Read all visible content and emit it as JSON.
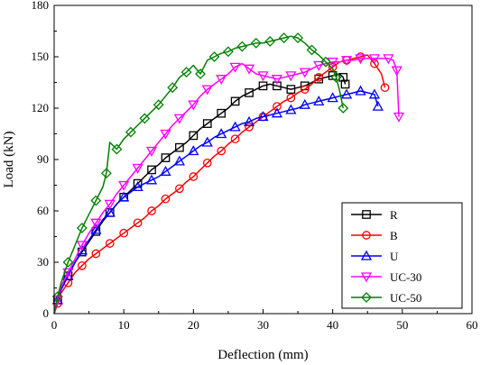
{
  "chart_data": {
    "type": "line",
    "title": "",
    "xlabel": "Deflection (mm)",
    "ylabel": "Load (kN)",
    "xlim": [
      0,
      60
    ],
    "ylim": [
      0,
      180
    ],
    "xticks": [
      0,
      10,
      20,
      30,
      40,
      50,
      60
    ],
    "yticks": [
      0,
      30,
      60,
      90,
      120,
      150,
      180
    ],
    "grid": false,
    "legend_position": "lower-right",
    "series": [
      {
        "name": "R",
        "color": "#000000",
        "marker": "square",
        "x": [
          0,
          0.5,
          1,
          2,
          3,
          4,
          5,
          6,
          7,
          8,
          9,
          10,
          11,
          12,
          13,
          14,
          15,
          16,
          17,
          18,
          19,
          20,
          21,
          22,
          23,
          24,
          25,
          26,
          27,
          28,
          29,
          30,
          31,
          32,
          33,
          34,
          35,
          36,
          37,
          38,
          39,
          40,
          41,
          41.5,
          41.8
        ],
        "y": [
          0,
          8,
          14,
          22,
          30,
          36,
          42,
          48,
          54,
          59,
          64,
          68,
          72,
          76,
          80,
          84,
          87,
          91,
          94,
          97,
          100,
          104,
          108,
          111,
          114,
          117,
          120,
          124,
          127,
          129,
          131,
          133,
          134,
          133,
          132,
          131,
          132,
          133,
          135,
          137,
          138,
          139,
          140,
          138,
          134
        ]
      },
      {
        "name": "B",
        "color": "#ff0000",
        "marker": "circle",
        "x": [
          0,
          0.5,
          1,
          2,
          3,
          4,
          5,
          6,
          7,
          8,
          9,
          10,
          11,
          12,
          13,
          14,
          15,
          16,
          17,
          18,
          19,
          20,
          21,
          22,
          23,
          24,
          25,
          26,
          27,
          28,
          29,
          30,
          31,
          32,
          33,
          34,
          35,
          36,
          37,
          38,
          39,
          40,
          41,
          42,
          43,
          44,
          45,
          46,
          47,
          47.5
        ],
        "y": [
          0,
          6,
          12,
          18,
          24,
          28,
          32,
          35,
          38,
          41,
          44,
          47,
          50,
          53,
          56,
          60,
          63,
          67,
          70,
          73,
          77,
          80,
          84,
          88,
          92,
          95,
          99,
          102,
          106,
          109,
          112,
          115,
          118,
          121,
          124,
          126,
          129,
          131,
          134,
          138,
          141,
          144,
          147,
          148,
          149,
          150,
          151,
          146,
          140,
          132
        ]
      },
      {
        "name": "U",
        "color": "#0000ff",
        "marker": "triangle",
        "x": [
          0,
          0.5,
          1,
          2,
          3,
          4,
          5,
          6,
          7,
          8,
          9,
          10,
          11,
          12,
          13,
          14,
          15,
          16,
          17,
          18,
          19,
          20,
          21,
          22,
          23,
          24,
          25,
          26,
          27,
          28,
          29,
          30,
          31,
          32,
          33,
          34,
          35,
          36,
          37,
          38,
          39,
          40,
          41,
          42,
          43,
          44,
          45,
          46,
          46.5
        ],
        "y": [
          0,
          8,
          14,
          22,
          30,
          37,
          43,
          49,
          55,
          59,
          64,
          68,
          71,
          74,
          76,
          78,
          80,
          83,
          86,
          89,
          92,
          95,
          98,
          100,
          103,
          105,
          107,
          109,
          111,
          112,
          114,
          115,
          116,
          117,
          118,
          119,
          120,
          122,
          123,
          124,
          125,
          126,
          127,
          128,
          129,
          130,
          129,
          128,
          121
        ]
      },
      {
        "name": "UC-30",
        "color": "#ff00ff",
        "marker": "triangle-down",
        "x": [
          0,
          0.5,
          1,
          2,
          3,
          4,
          5,
          6,
          7,
          8,
          9,
          10,
          11,
          12,
          13,
          14,
          15,
          16,
          17,
          18,
          19,
          20,
          21,
          22,
          23,
          24,
          25,
          26,
          27,
          28,
          29,
          30,
          31,
          32,
          33,
          34,
          35,
          36,
          37,
          38,
          39,
          40,
          41,
          42,
          43,
          44,
          45,
          46,
          47,
          48,
          48.7,
          49.2,
          49.5
        ],
        "y": [
          0,
          8,
          16,
          24,
          32,
          40,
          47,
          53,
          59,
          64,
          70,
          75,
          80,
          85,
          90,
          95,
          100,
          105,
          110,
          114,
          118,
          122,
          127,
          131,
          134,
          137,
          140,
          144,
          146,
          143,
          140,
          139,
          138,
          137,
          138,
          139,
          140,
          141,
          143,
          145,
          146,
          147,
          147,
          148,
          148,
          149,
          149,
          149,
          149,
          149,
          148,
          142,
          115
        ]
      },
      {
        "name": "UC-50",
        "color": "#008000",
        "marker": "diamond",
        "x": [
          0,
          0.5,
          1,
          2,
          3,
          4,
          5,
          6,
          7,
          7.5,
          8,
          9,
          10,
          11,
          12,
          13,
          14,
          15,
          16,
          17,
          18,
          19,
          20,
          21,
          22,
          23,
          24,
          25,
          26,
          27,
          28,
          29,
          30,
          31,
          32,
          33,
          34,
          35,
          36,
          37,
          38,
          39,
          40,
          40.5,
          41,
          41.5
        ],
        "y": [
          0,
          10,
          18,
          30,
          40,
          50,
          58,
          66,
          74,
          82,
          100,
          96,
          102,
          106,
          110,
          114,
          118,
          122,
          127,
          132,
          138,
          141,
          145,
          140,
          148,
          150,
          152,
          153,
          155,
          156,
          157,
          158,
          158,
          159,
          160,
          161,
          162,
          161,
          158,
          154,
          151,
          147,
          143,
          138,
          130,
          120
        ]
      }
    ]
  }
}
